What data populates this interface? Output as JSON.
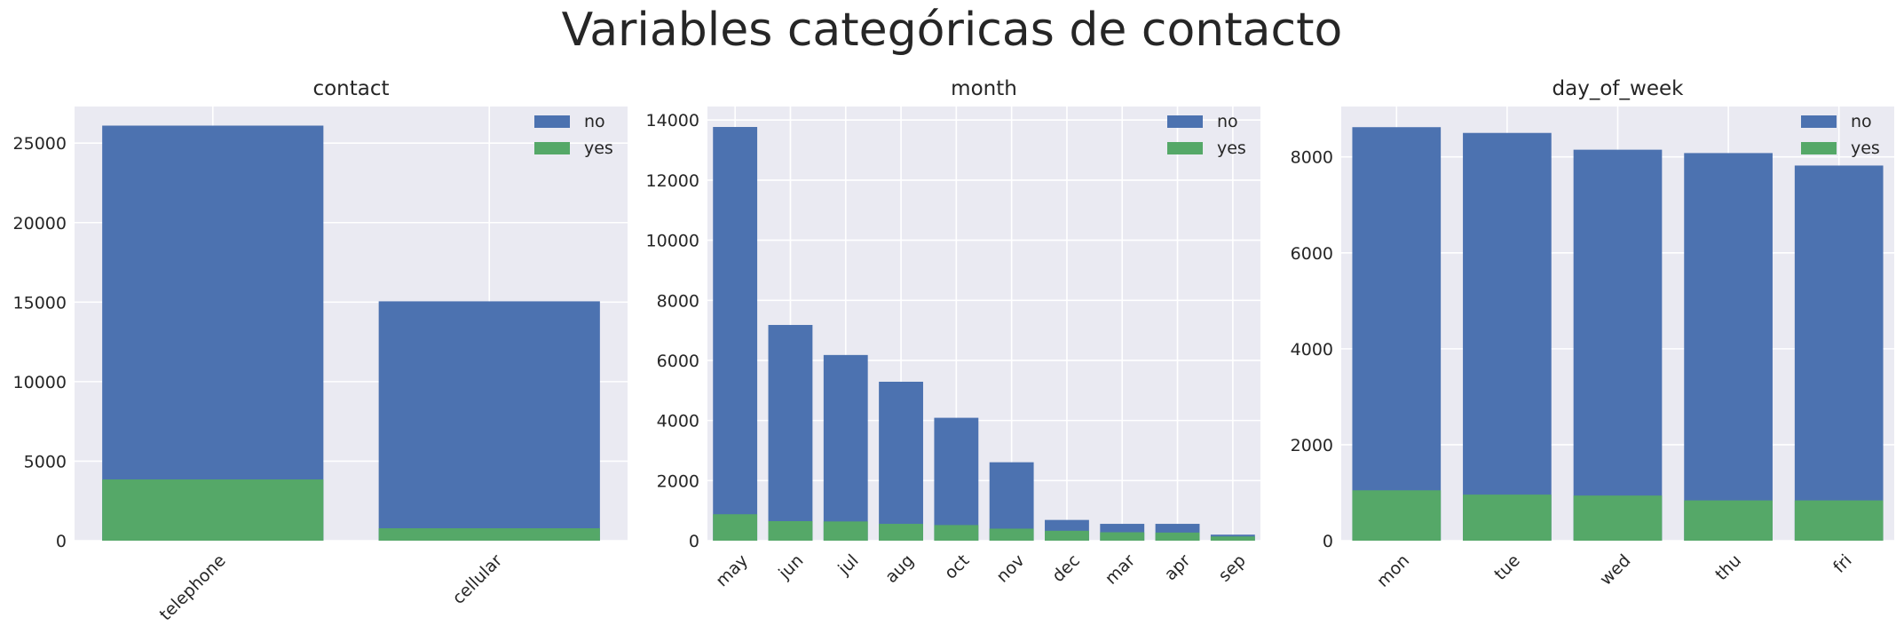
{
  "figure": {
    "suptitle": "Variables categóricas de contacto"
  },
  "colors": {
    "no": "#4c72b0",
    "yes": "#55a868",
    "panel_bg": "#eaeaf2",
    "grid": "#ffffff"
  },
  "chart_data": [
    {
      "type": "bar",
      "title": "contact",
      "categories": [
        "telephone",
        "cellular"
      ],
      "series": [
        {
          "name": "no",
          "values": [
            26100,
            15050
          ]
        },
        {
          "name": "yes",
          "values": [
            3850,
            780
          ]
        }
      ],
      "ylim": [
        0,
        27300
      ],
      "yticks": [
        0,
        5000,
        10000,
        15000,
        20000,
        25000
      ],
      "grid": true,
      "legend": "top-right",
      "overlay": true
    },
    {
      "type": "bar",
      "title": "month",
      "categories": [
        "may",
        "jun",
        "jul",
        "aug",
        "oct",
        "nov",
        "dec",
        "mar",
        "apr",
        "sep"
      ],
      "series": [
        {
          "name": "no",
          "values": [
            13770,
            7180,
            6180,
            5290,
            4090,
            2610,
            690,
            560,
            560,
            200
          ]
        },
        {
          "name": "yes",
          "values": [
            880,
            650,
            640,
            560,
            520,
            400,
            330,
            280,
            270,
            140
          ]
        }
      ],
      "ylim": [
        0,
        14450
      ],
      "yticks": [
        0,
        2000,
        4000,
        6000,
        8000,
        10000,
        12000,
        14000
      ],
      "grid": true,
      "legend": "top-right",
      "overlay": true
    },
    {
      "type": "bar",
      "title": "day_of_week",
      "categories": [
        "mon",
        "tue",
        "wed",
        "thu",
        "fri"
      ],
      "series": [
        {
          "name": "no",
          "values": [
            8620,
            8500,
            8150,
            8080,
            7820
          ]
        },
        {
          "name": "yes",
          "values": [
            1050,
            960,
            940,
            840,
            840
          ]
        }
      ],
      "ylim": [
        0,
        9050
      ],
      "yticks": [
        0,
        2000,
        4000,
        6000,
        8000
      ],
      "grid": true,
      "legend": "top-right",
      "overlay": true
    }
  ]
}
